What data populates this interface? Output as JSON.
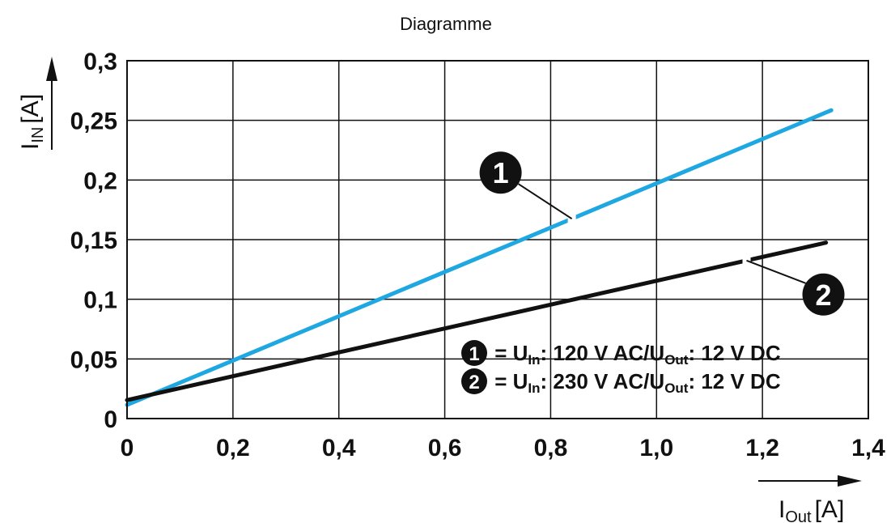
{
  "chart_data": {
    "type": "line",
    "title": "Diagramme",
    "x_ticks": [
      "0",
      "0,2",
      "0,4",
      "0,6",
      "0,8",
      "1,0",
      "1,2",
      "1,4"
    ],
    "y_ticks": [
      "0",
      "0,05",
      "0,1",
      "0,15",
      "0,2",
      "0,25",
      "0,3"
    ],
    "xlim": [
      0,
      1.4
    ],
    "ylim": [
      0,
      0.3
    ],
    "grid": true,
    "xlabel": {
      "main": "I",
      "sub": "Out",
      "unit": "[A]"
    },
    "ylabel": {
      "main": "I",
      "sub": "IN",
      "unit": "[A]"
    },
    "series": [
      {
        "id": "1",
        "color": "#1EA7E1",
        "x": [
          0,
          1.33
        ],
        "y": [
          0.0115,
          0.2585
        ]
      },
      {
        "id": "2",
        "color": "#111111",
        "x": [
          0,
          1.32
        ],
        "y": [
          0.0155,
          0.1475
        ]
      }
    ],
    "legend": [
      {
        "marker": "1",
        "sep": " = ",
        "u1": "U",
        "u1_sub": "In",
        "mid": ": 120 V AC/",
        "u2": "U",
        "u2_sub": "Out",
        "end": ": 12 V DC"
      },
      {
        "marker": "2",
        "sep": " = ",
        "u1": "U",
        "u1_sub": "In",
        "mid": ": 230 V AC/",
        "u2": "U",
        "u2_sub": "Out",
        "end": ": 12 V DC"
      }
    ],
    "callouts": [
      {
        "marker": "1",
        "series": "1",
        "at_x": 0.84
      },
      {
        "marker": "2",
        "series": "2",
        "at_x": 1.17
      }
    ]
  }
}
